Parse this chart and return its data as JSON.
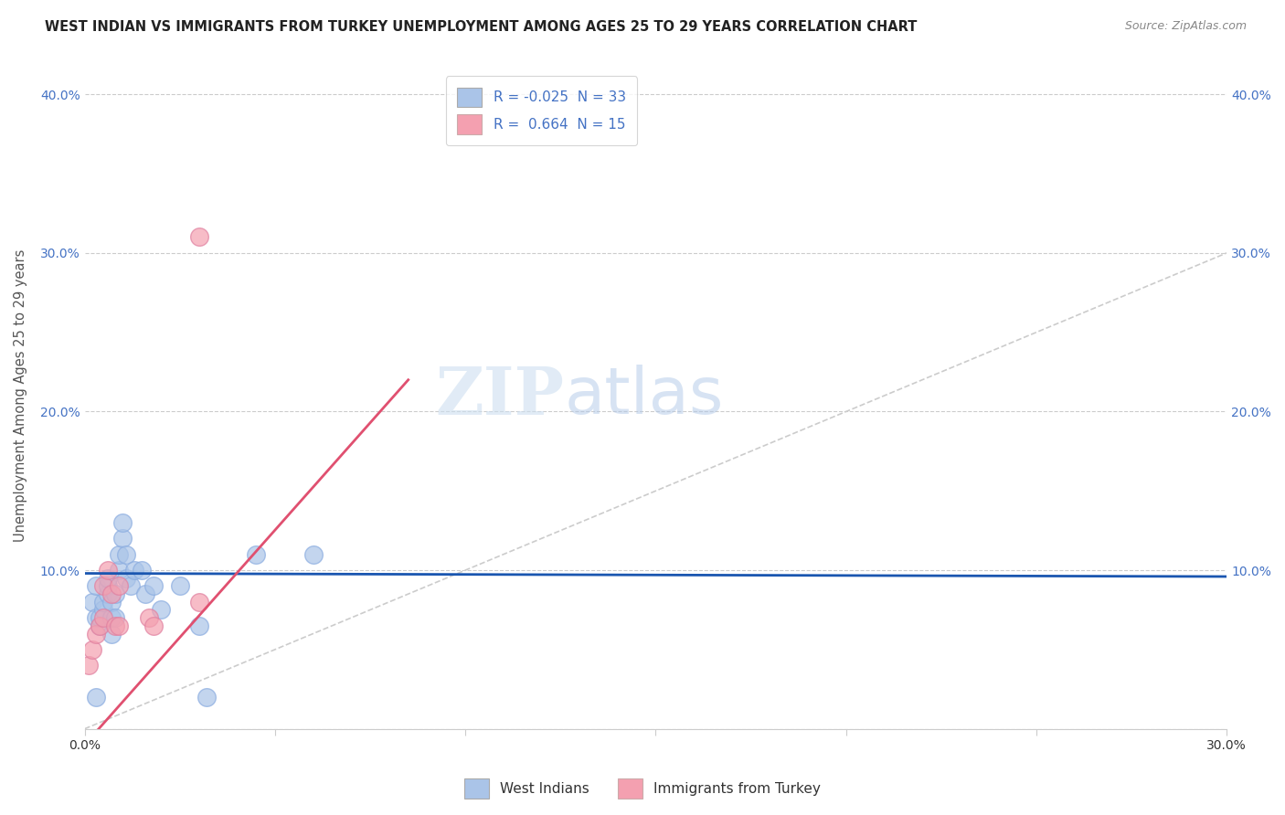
{
  "title": "WEST INDIAN VS IMMIGRANTS FROM TURKEY UNEMPLOYMENT AMONG AGES 25 TO 29 YEARS CORRELATION CHART",
  "source": "Source: ZipAtlas.com",
  "ylabel": "Unemployment Among Ages 25 to 29 years",
  "xlim": [
    -0.002,
    0.305
  ],
  "ylim": [
    -0.02,
    0.44
  ],
  "plot_xlim": [
    0.0,
    0.3
  ],
  "plot_ylim": [
    0.0,
    0.42
  ],
  "xticks": [
    0.0,
    0.05,
    0.1,
    0.15,
    0.2,
    0.25,
    0.3
  ],
  "xtick_labels_show": [
    "0.0%",
    "",
    "",
    "",
    "",
    "",
    "30.0%"
  ],
  "yticks": [
    0.0,
    0.1,
    0.2,
    0.3,
    0.4
  ],
  "ytick_labels_left": [
    "",
    "10.0%",
    "20.0%",
    "30.0%",
    "40.0%"
  ],
  "ytick_labels_right": [
    "",
    "10.0%",
    "20.0%",
    "30.0%",
    "40.0%"
  ],
  "blue_R": "-0.025",
  "blue_N": "33",
  "pink_R": "0.664",
  "pink_N": "15",
  "blue_color": "#aac4e8",
  "pink_color": "#f4a0b0",
  "blue_line_color": "#1a56b0",
  "pink_line_color": "#e05070",
  "watermark_zip": "ZIP",
  "watermark_atlas": "atlas",
  "blue_scatter_x": [
    0.002,
    0.003,
    0.003,
    0.004,
    0.004,
    0.005,
    0.005,
    0.006,
    0.006,
    0.006,
    0.007,
    0.007,
    0.007,
    0.008,
    0.008,
    0.009,
    0.009,
    0.01,
    0.01,
    0.011,
    0.011,
    0.012,
    0.013,
    0.015,
    0.016,
    0.018,
    0.02,
    0.025,
    0.03,
    0.032,
    0.045,
    0.003,
    0.06
  ],
  "blue_scatter_y": [
    0.08,
    0.09,
    0.07,
    0.065,
    0.07,
    0.075,
    0.08,
    0.085,
    0.09,
    0.095,
    0.06,
    0.07,
    0.08,
    0.07,
    0.085,
    0.1,
    0.11,
    0.12,
    0.13,
    0.11,
    0.095,
    0.09,
    0.1,
    0.1,
    0.085,
    0.09,
    0.075,
    0.09,
    0.065,
    0.02,
    0.11,
    0.02,
    0.11
  ],
  "pink_scatter_x": [
    0.001,
    0.002,
    0.003,
    0.004,
    0.005,
    0.005,
    0.006,
    0.007,
    0.008,
    0.009,
    0.009,
    0.017,
    0.018,
    0.03,
    0.03
  ],
  "pink_scatter_y": [
    0.04,
    0.05,
    0.06,
    0.065,
    0.07,
    0.09,
    0.1,
    0.085,
    0.065,
    0.065,
    0.09,
    0.07,
    0.065,
    0.08,
    0.31
  ],
  "blue_line_x": [
    0.0,
    0.3
  ],
  "blue_line_y": [
    0.098,
    0.096
  ],
  "pink_line_x": [
    0.0,
    0.085
  ],
  "pink_line_y": [
    -0.01,
    0.22
  ],
  "ref_line_x": [
    0.0,
    0.42
  ],
  "ref_line_y": [
    0.0,
    0.42
  ]
}
